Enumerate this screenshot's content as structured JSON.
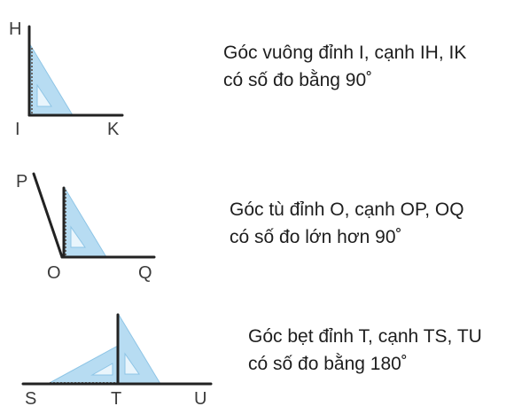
{
  "angles": [
    {
      "id": "right",
      "vertex": "I",
      "ray1_point": "H",
      "ray2_point": "K",
      "line1": "Góc vuông đỉnh I, cạnh IH, IK",
      "line2": "có số đo bằng 90˚"
    },
    {
      "id": "obtuse",
      "vertex": "O",
      "ray1_point": "P",
      "ray2_point": "Q",
      "line1": "Góc tù đỉnh O, cạnh OP, OQ",
      "line2": "có số đo lớn hơn 90˚"
    },
    {
      "id": "straight",
      "vertex": "T",
      "ray1_point": "S",
      "ray2_point": "U",
      "line1": "Góc bẹt đỉnh T, cạnh TS, TU",
      "line2": "có số đo bằng 180˚"
    }
  ],
  "colors": {
    "set_square_fill": "#b7dcf2",
    "ray": "#222222"
  }
}
